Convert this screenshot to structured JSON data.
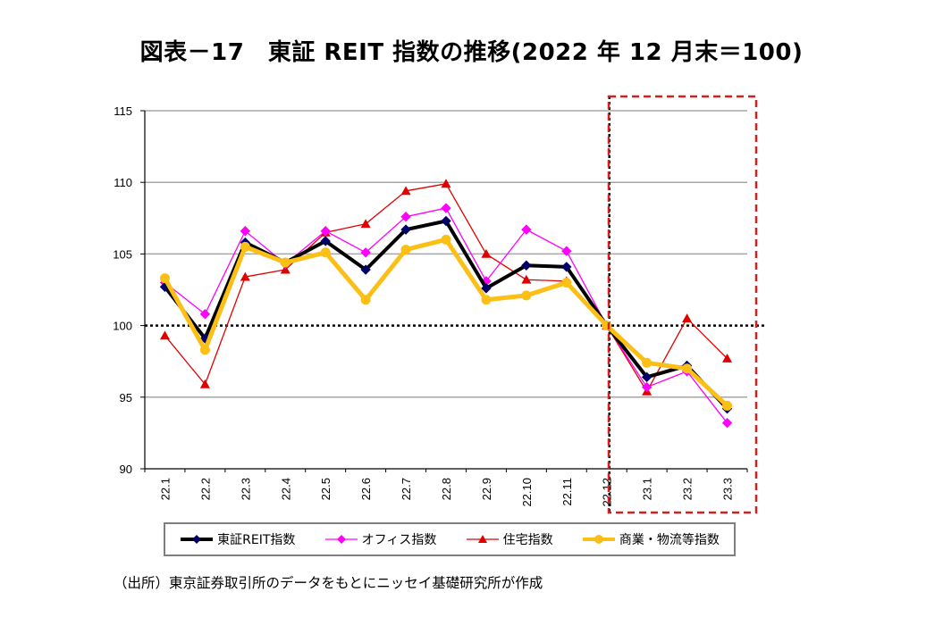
{
  "chart_data": {
    "type": "line",
    "title": "図表－17　東証 REIT 指数の推移(2022 年 12 月末＝100)",
    "xlabel": "",
    "ylabel": "",
    "categories": [
      "22.1",
      "22.2",
      "22.3",
      "22.4",
      "22.5",
      "22.6",
      "22.7",
      "22.8",
      "22.9",
      "22.10",
      "22.11",
      "22.12",
      "23.1",
      "23.2",
      "23.3"
    ],
    "ylim": [
      90,
      115
    ],
    "yticks": [
      90,
      95,
      100,
      105,
      110,
      115
    ],
    "grid": true,
    "reference_line": {
      "value": 100,
      "style": "dotted",
      "color": "#000000"
    },
    "highlight_region": {
      "from": "22.12",
      "to": "23.3",
      "style": "dashed",
      "color": "#d42020"
    },
    "legend_position": "bottom",
    "series": [
      {
        "name": "東証REIT指数",
        "color": "#000000",
        "marker": "diamond",
        "marker_color": "#000066",
        "line_weight": "thick",
        "values": [
          102.7,
          99.1,
          105.8,
          104.4,
          105.9,
          103.9,
          106.7,
          107.3,
          102.6,
          104.2,
          104.1,
          100.0,
          96.4,
          97.2,
          94.2
        ]
      },
      {
        "name": "オフィス指数",
        "color": "#ff00ff",
        "marker": "diamond",
        "marker_color": "#ff00ff",
        "line_weight": "thin",
        "values": [
          103.0,
          100.8,
          106.6,
          104.3,
          106.6,
          105.1,
          107.6,
          108.2,
          103.1,
          106.7,
          105.2,
          100.0,
          95.7,
          96.8,
          93.2
        ]
      },
      {
        "name": "住宅指数",
        "color": "#e00000",
        "marker": "triangle",
        "marker_color": "#e00000",
        "line_weight": "thin",
        "values": [
          99.3,
          95.9,
          103.4,
          103.9,
          106.5,
          107.1,
          109.4,
          109.9,
          105.0,
          103.2,
          103.1,
          100.0,
          95.4,
          100.5,
          97.7
        ]
      },
      {
        "name": "商業・物流等指数",
        "color": "#fbbf16",
        "marker": "circle",
        "marker_color": "#fbbf16",
        "line_weight": "thick",
        "values": [
          103.3,
          98.3,
          105.5,
          104.4,
          105.1,
          101.8,
          105.3,
          106.0,
          101.8,
          102.1,
          103.0,
          100.0,
          97.4,
          97.0,
          94.4
        ]
      }
    ]
  },
  "source_note": "（出所）東京証券取引所のデータをもとにニッセイ基礎研究所が作成"
}
